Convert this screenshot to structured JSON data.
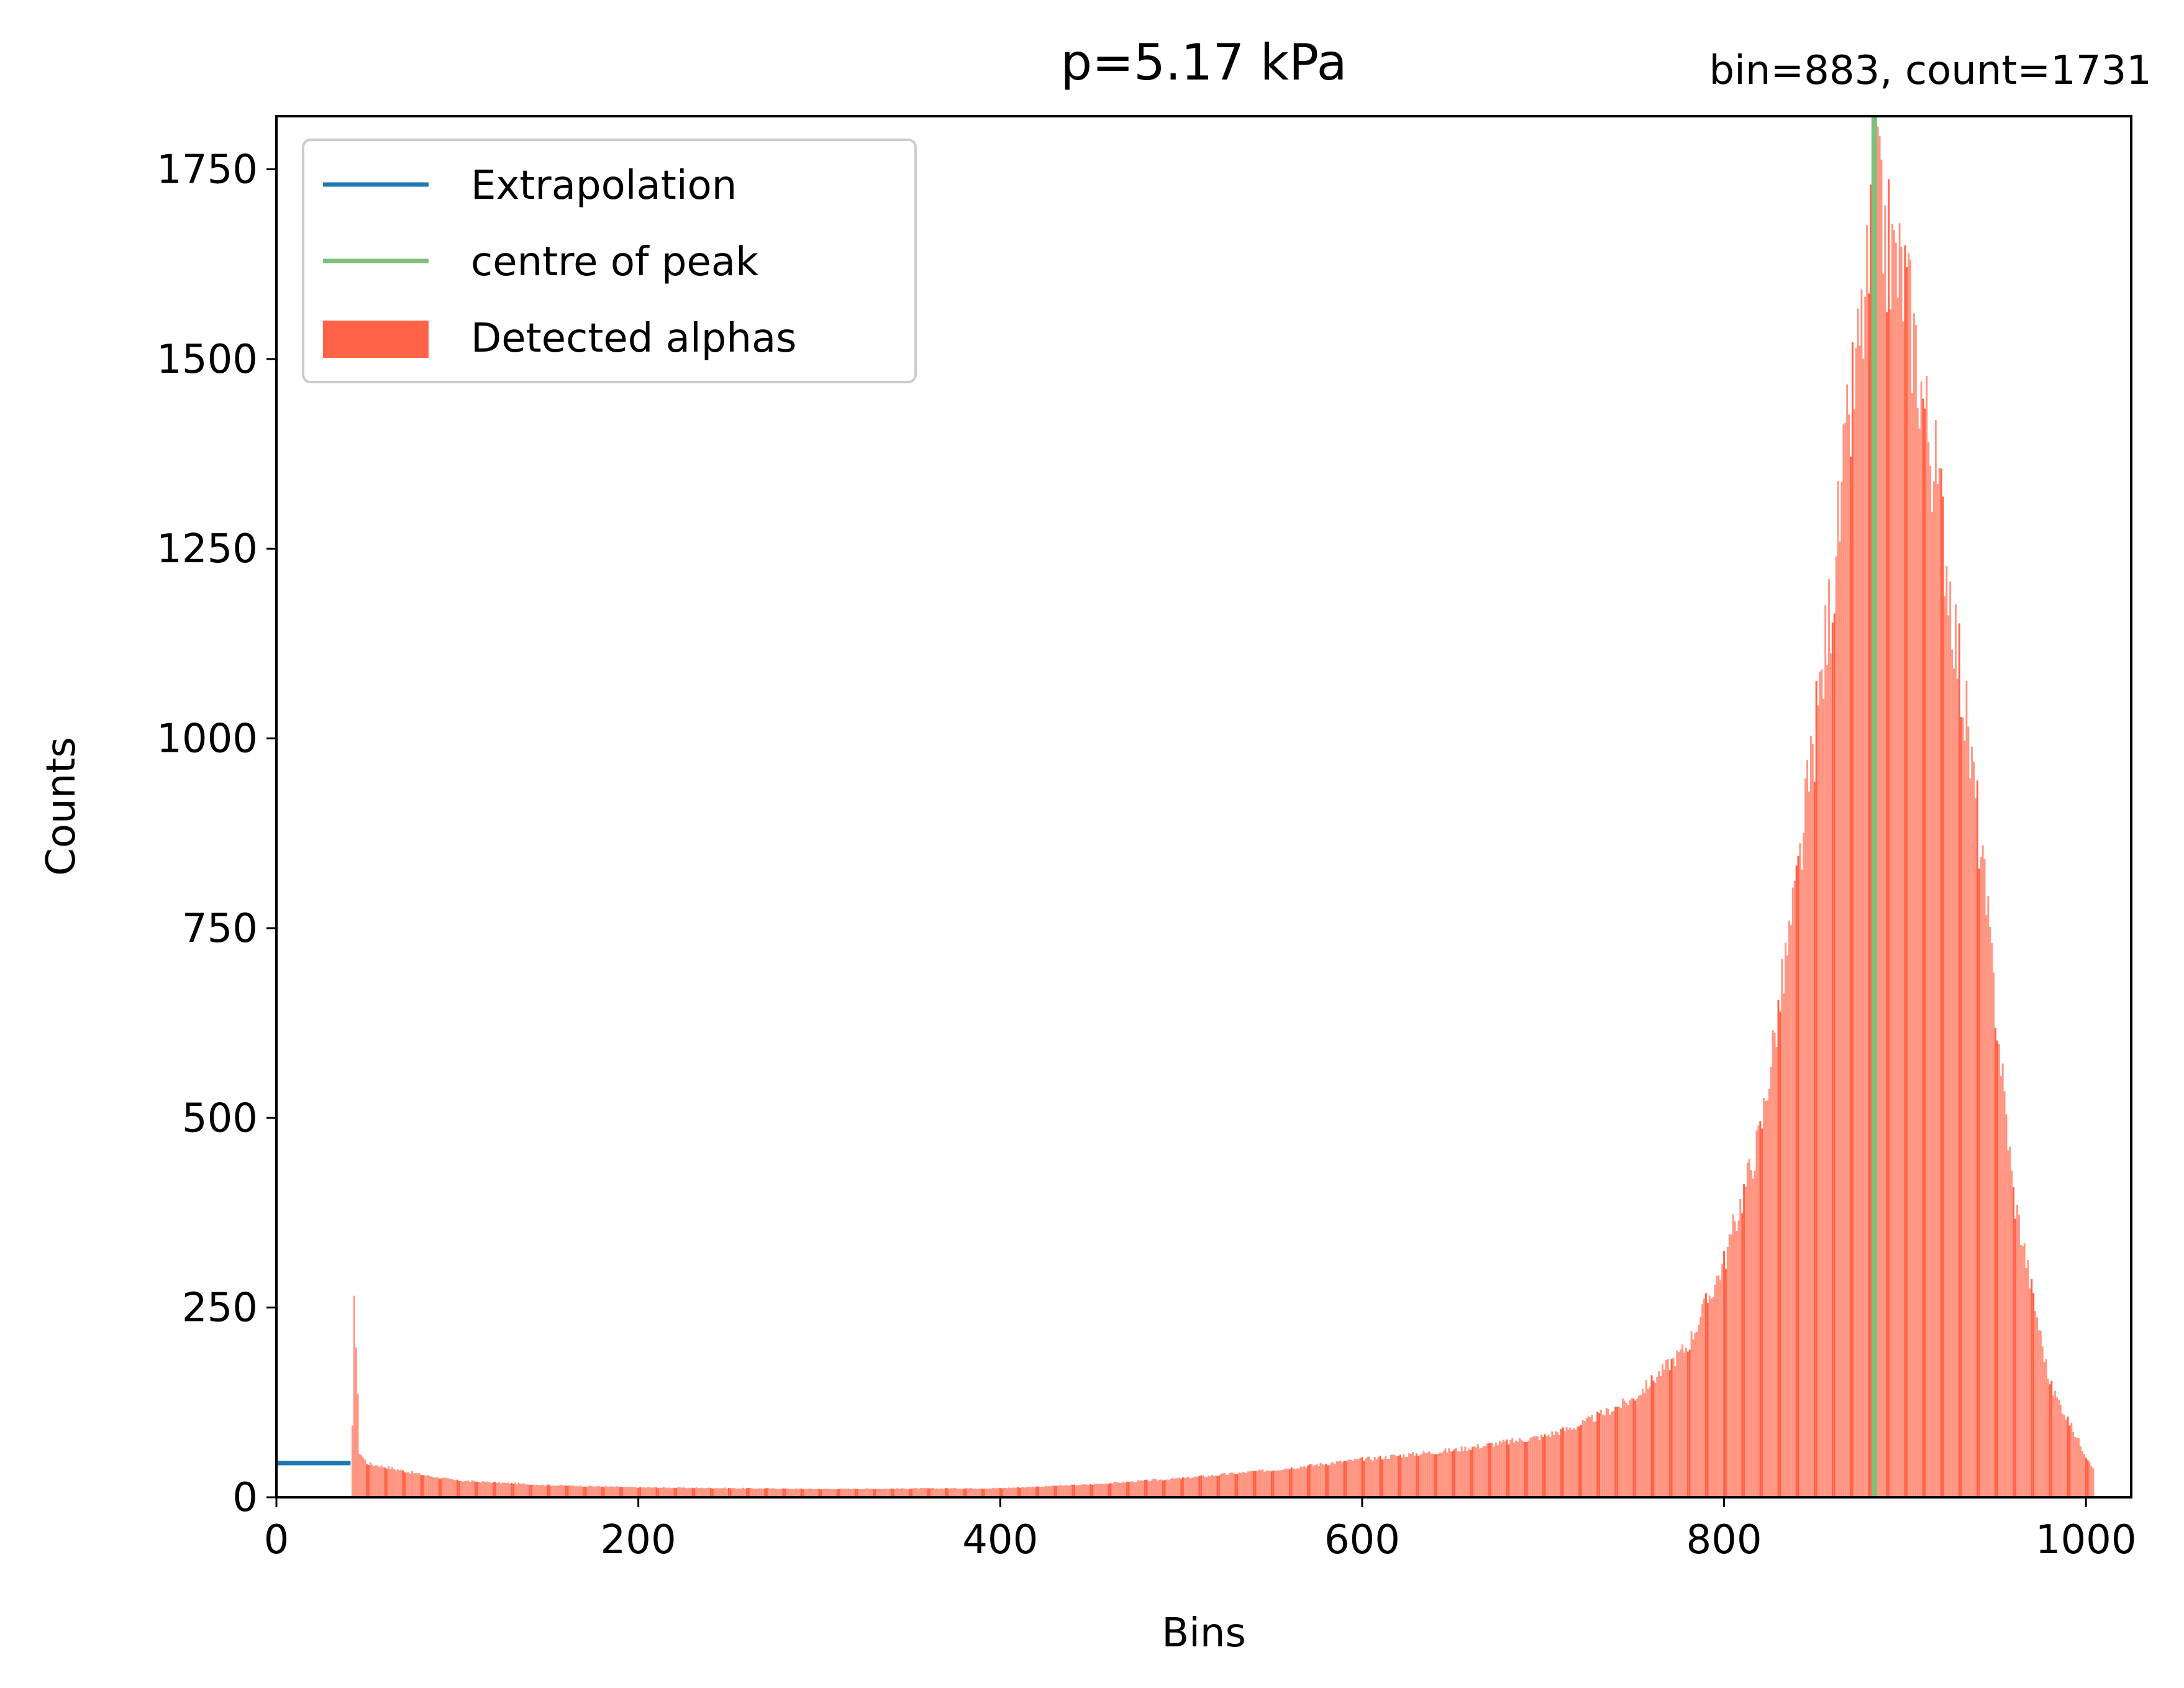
{
  "chart_data": {
    "type": "bar",
    "title": "p=5.17 kPa",
    "annotation": "bin=883, count=1731",
    "xlabel": "Bins",
    "ylabel": "Counts",
    "xlim": [
      0,
      1025
    ],
    "ylim": [
      0,
      1820
    ],
    "xticks": [
      0,
      200,
      400,
      600,
      800,
      1000
    ],
    "yticks": [
      0,
      250,
      500,
      750,
      1000,
      1250,
      1500,
      1750
    ],
    "legend": {
      "position": "top-left",
      "entries": [
        "Extrapolation",
        "centre of peak",
        "Detected alphas"
      ]
    },
    "histogram": {
      "name": "Detected alphas",
      "color": "#ff6347",
      "bin_range": [
        41,
        1004
      ],
      "bin_width": 1,
      "profile": [
        [
          41,
          0
        ],
        [
          42,
          90
        ],
        [
          43,
          280
        ],
        [
          44,
          200
        ],
        [
          46,
          60
        ],
        [
          50,
          45
        ],
        [
          60,
          40
        ],
        [
          80,
          30
        ],
        [
          100,
          22
        ],
        [
          150,
          16
        ],
        [
          200,
          13
        ],
        [
          300,
          11
        ],
        [
          400,
          12
        ],
        [
          450,
          17
        ],
        [
          500,
          25
        ],
        [
          550,
          36
        ],
        [
          600,
          50
        ],
        [
          650,
          62
        ],
        [
          700,
          80
        ],
        [
          720,
          95
        ],
        [
          750,
          130
        ],
        [
          780,
          200
        ],
        [
          800,
          310
        ],
        [
          820,
          480
        ],
        [
          840,
          800
        ],
        [
          860,
          1200
        ],
        [
          870,
          1430
        ],
        [
          880,
          1610
        ],
        [
          883,
          1731
        ],
        [
          890,
          1650
        ],
        [
          900,
          1600
        ],
        [
          920,
          1300
        ],
        [
          940,
          900
        ],
        [
          960,
          400
        ],
        [
          980,
          150
        ],
        [
          1000,
          55
        ],
        [
          1004,
          40
        ]
      ]
    },
    "series": [
      {
        "name": "Extrapolation",
        "color": "#1f77b4",
        "x": [
          0,
          41
        ],
        "y": [
          45,
          45
        ]
      },
      {
        "name": "centre of peak",
        "color": "#7fbf7b",
        "x": [
          883,
          883
        ],
        "y": [
          0,
          1820
        ]
      }
    ]
  }
}
